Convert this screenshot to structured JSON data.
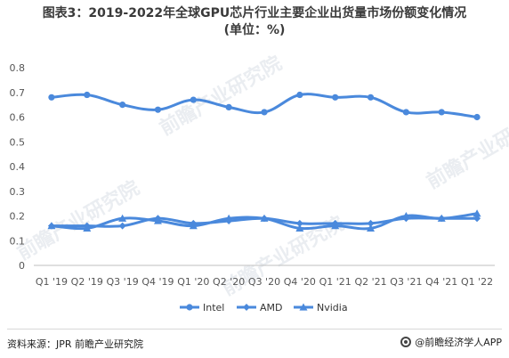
{
  "title_line1": "图表3：2019-2022年全球GPU芯片行业主要企业出货量市场份额变化情况",
  "title_line2": "(单位：%)",
  "source": "资料来源：JPR 前瞻产业研究院",
  "brand": "@前瞻经济学人APP",
  "watermark": "前瞻产业研究院",
  "colors": {
    "series": "#4a89dc",
    "axis": "#bfbfbf",
    "tick_text": "#555555"
  },
  "chart_data": {
    "type": "line",
    "title": "图表3：2019-2022年全球GPU芯片行业主要企业出货量市场份额变化情况 (单位：%)",
    "categories": [
      "Q1 '19",
      "Q2 '19",
      "Q3 '19",
      "Q4 '19",
      "Q1 '20",
      "Q2 '20",
      "Q3 '20",
      "Q4 '20",
      "Q1 '21",
      "Q2 '21",
      "Q3 '21",
      "Q4 '21",
      "Q1 '22"
    ],
    "ylim": [
      0,
      0.8
    ],
    "yticks": [
      0,
      0.1,
      0.2,
      0.3,
      0.4,
      0.5,
      0.6,
      0.7,
      0.8
    ],
    "ytick_labels": [
      "0",
      "0.1",
      "0.2",
      "0.3",
      "0.4",
      "0.5",
      "0.6",
      "0.7",
      "0.8"
    ],
    "grid": false,
    "legend_position": "bottom",
    "series": [
      {
        "name": "Intel",
        "marker": "circle",
        "values": [
          0.68,
          0.69,
          0.65,
          0.63,
          0.67,
          0.64,
          0.62,
          0.69,
          0.68,
          0.68,
          0.62,
          0.62,
          0.6
        ]
      },
      {
        "name": "AMD",
        "marker": "diamond",
        "values": [
          0.16,
          0.16,
          0.16,
          0.19,
          0.17,
          0.18,
          0.19,
          0.17,
          0.17,
          0.17,
          0.19,
          0.19,
          0.19
        ]
      },
      {
        "name": "Nvidia",
        "marker": "triangle",
        "values": [
          0.16,
          0.15,
          0.19,
          0.18,
          0.16,
          0.19,
          0.19,
          0.15,
          0.16,
          0.15,
          0.2,
          0.19,
          0.21
        ]
      }
    ]
  }
}
